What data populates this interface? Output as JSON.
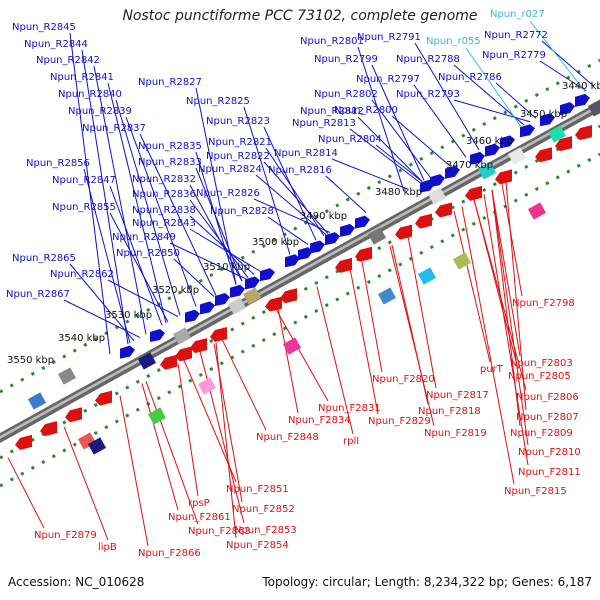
{
  "title": "Nostoc punctiforme PCC 73102, complete genome",
  "footer": {
    "accession": "Accession: NC_010628",
    "summary": "Topology: circular; Length: 8,234,322 bp; Genes: 6,187"
  },
  "ruler_labels": [
    "3440 kbp",
    "3450 kbp",
    "3460 kbp",
    "3470 kbp",
    "3480 kbp",
    "3490 kbp",
    "3500 kbp",
    "3510 kbp",
    "3520 kbp",
    "3530 kbp",
    "3540 kbp",
    "3550 kbp"
  ],
  "reverse_labels": [
    "Npun_R2845",
    "Npun_R2844",
    "Npun_R2842",
    "Npun_R2841",
    "Npun_R2840",
    "Npun_R2839",
    "Npun_R2837",
    "Npun_R2835",
    "Npun_R2833",
    "Npun_R2832",
    "Npun_R2836",
    "Npun_R2838",
    "Npun_R2843",
    "Npun_R2849",
    "Npun_R2850",
    "Npun_R2856",
    "Npun_R2847",
    "Npun_R2855",
    "Npun_R2865",
    "Npun_R2862",
    "Npun_R2867",
    "Npun_R2827",
    "Npun_R2825",
    "Npun_R2823",
    "Npun_R2821",
    "Npun_R2822",
    "Npun_R2824",
    "Npun_R2826",
    "Npun_R2828",
    "Npun_R2801",
    "Npun_R2799",
    "Npun_R2802",
    "Npun_R2812",
    "Npun_R2813",
    "Npun_R2814",
    "Npun_R2816",
    "Npun_R2804",
    "Npun_R2797",
    "Npun_R2800",
    "Npun_R2791",
    "Npun_R2788",
    "Npun_R2793",
    "Npun_R2786",
    "Npun_R2779",
    "Npun_R2772"
  ],
  "rna_labels": [
    "Npun_r027",
    "Npun_r055"
  ],
  "forward_labels": [
    "Npun_F2798",
    "Npun_F2803",
    "purT",
    "Npun_F2805",
    "Npun_F2806",
    "Npun_F2807",
    "Npun_F2809",
    "Npun_F2810",
    "Npun_F2811",
    "Npun_F2815",
    "Npun_F2820",
    "Npun_F2817",
    "Npun_F2818",
    "Npun_F2819",
    "Npun_F2831",
    "Npun_F2834",
    "Npun_F2829",
    "rplI",
    "Npun_F2848",
    "Npun_F2851",
    "rpsP",
    "Npun_F2852",
    "Npun_F2861",
    "Npun_F2853",
    "Npun_F2863",
    "Npun_F2854",
    "Npun_F2866",
    "Npun_F2879",
    "lipB"
  ],
  "colors": {
    "reverse": "#1010cc",
    "forward": "#dd1010",
    "rna": "#33bbdd",
    "backbone": "#777777",
    "tick": "#2a8a2a"
  }
}
